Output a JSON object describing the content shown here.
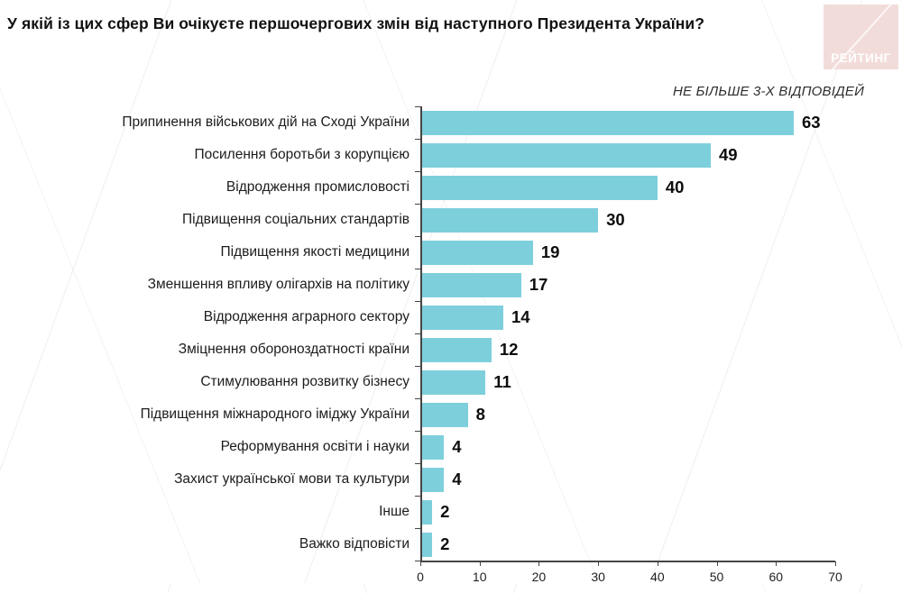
{
  "page": {
    "title": "У якій із цих сфер Ви очікуєте першочергових змін від наступного Президента України?",
    "logo_text": "РЕЙТИНГ",
    "logo_bg_color": "#f2dcda"
  },
  "chart_data": {
    "type": "bar",
    "orientation": "horizontal",
    "note": "НЕ БІЛЬШЕ 3-Х ВІДПОВІДЕЙ",
    "categories": [
      "Припинення військових дій на Сході України",
      "Посилення боротьби з корупцією",
      "Відродження промисловості",
      "Підвищення соціальних стандартів",
      "Підвищення якості медицини",
      "Зменшення впливу олігархів на політику",
      "Відродження аграрного сектору",
      "Зміцнення обороноздатності країни",
      "Стимулювання розвитку бізнесу",
      "Підвищення міжнародного іміджу України",
      "Реформування освіти і науки",
      "Захист української мови та культури",
      "Інше",
      "Важко відповісти"
    ],
    "values": [
      63,
      49,
      40,
      30,
      19,
      17,
      14,
      12,
      11,
      8,
      4,
      4,
      2,
      2
    ],
    "xlim": [
      0,
      70
    ],
    "x_ticks": [
      0,
      10,
      20,
      30,
      40,
      50,
      60,
      70
    ],
    "bar_color": "#7ecfdc",
    "axis_color": "#454545",
    "grid": false,
    "value_labels": true,
    "title": "",
    "xlabel": "",
    "ylabel": ""
  }
}
